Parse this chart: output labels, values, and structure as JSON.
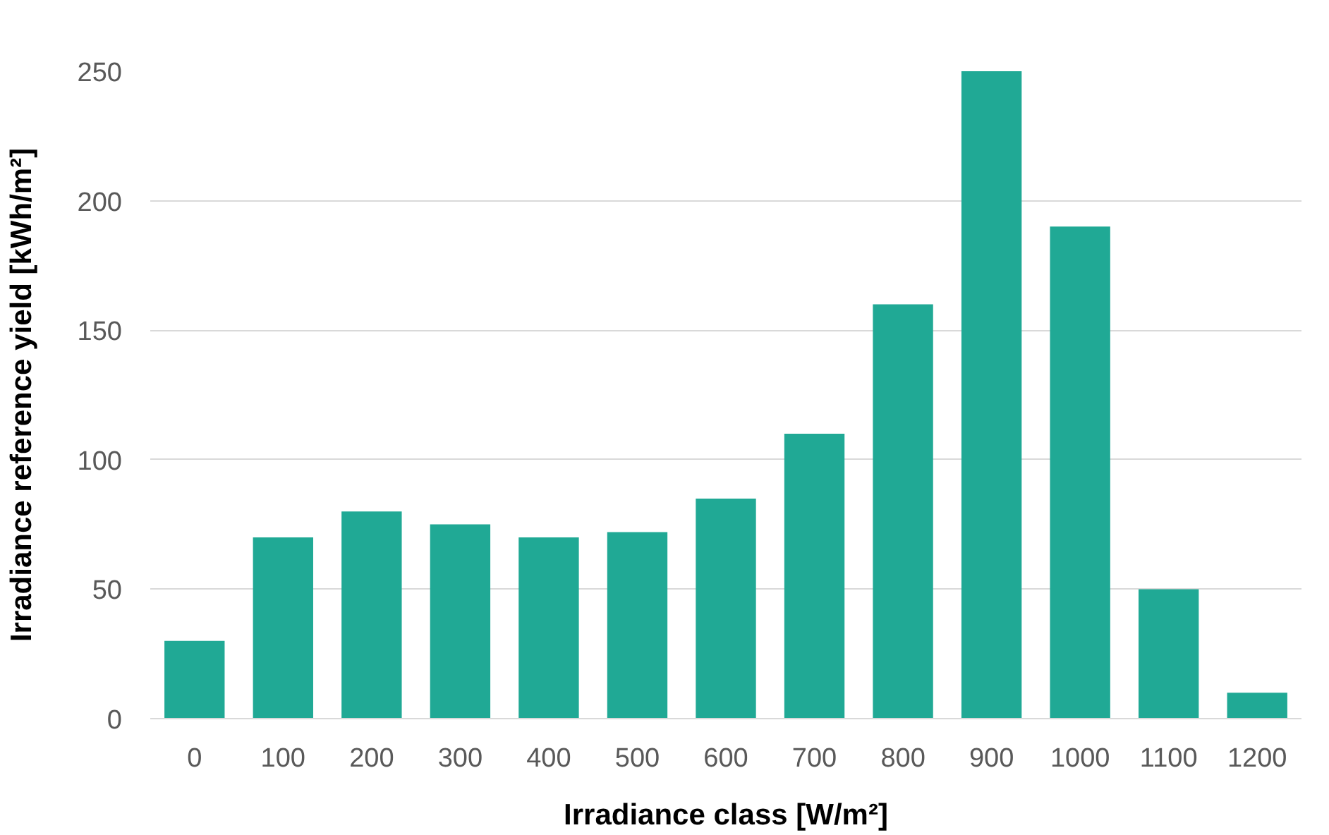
{
  "chart_data": {
    "type": "bar",
    "xlabel": "Irradiance class [W/m²]",
    "ylabel": "Irradiance reference yield [kWh/m²]",
    "categories": [
      "0",
      "100",
      "200",
      "300",
      "400",
      "500",
      "600",
      "700",
      "800",
      "900",
      "1000",
      "1100",
      "1200"
    ],
    "values": [
      30,
      70,
      80,
      75,
      70,
      72,
      85,
      110,
      160,
      250,
      190,
      50,
      10
    ],
    "color": "#20a995",
    "ylim": [
      0,
      250
    ],
    "yticks": [
      0,
      50,
      100,
      150,
      200,
      250
    ],
    "grid": "y"
  }
}
